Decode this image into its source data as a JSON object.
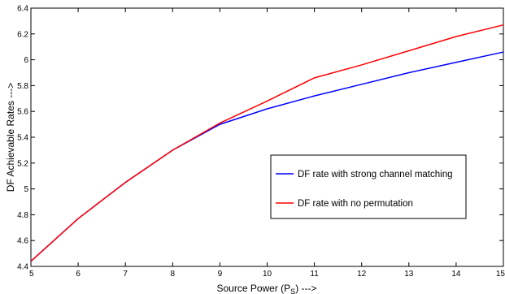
{
  "chart_data": {
    "type": "line",
    "xlabel": "Source Power (P",
    "xlabel_sub": "S",
    "xlabel_suffix": ") --->",
    "ylabel": "DF Achievable Rates --->",
    "xlim": [
      5,
      15
    ],
    "ylim": [
      4.4,
      6.4
    ],
    "xticks": [
      "5",
      "6",
      "7",
      "8",
      "9",
      "10",
      "11",
      "12",
      "13",
      "14",
      "15"
    ],
    "yticks": [
      "4.4",
      "4.6",
      "4.8",
      "5",
      "5.2",
      "5.4",
      "5.6",
      "5.8",
      "6",
      "6.2",
      "6.4"
    ],
    "grid": false,
    "legend_position": "center-right",
    "x": [
      5,
      6,
      7,
      8,
      9,
      10,
      11,
      12,
      13,
      14,
      15
    ],
    "series": [
      {
        "name": "DF rate with strong channel matching",
        "color": "#0000ff",
        "values": [
          4.44,
          4.77,
          5.05,
          5.3,
          5.5,
          5.62,
          5.72,
          5.81,
          5.9,
          5.98,
          6.06
        ]
      },
      {
        "name": "DF rate with no permutation",
        "color": "#ff0000",
        "values": [
          4.44,
          4.77,
          5.05,
          5.3,
          5.51,
          5.68,
          5.86,
          5.96,
          6.07,
          6.18,
          6.27
        ]
      }
    ]
  }
}
